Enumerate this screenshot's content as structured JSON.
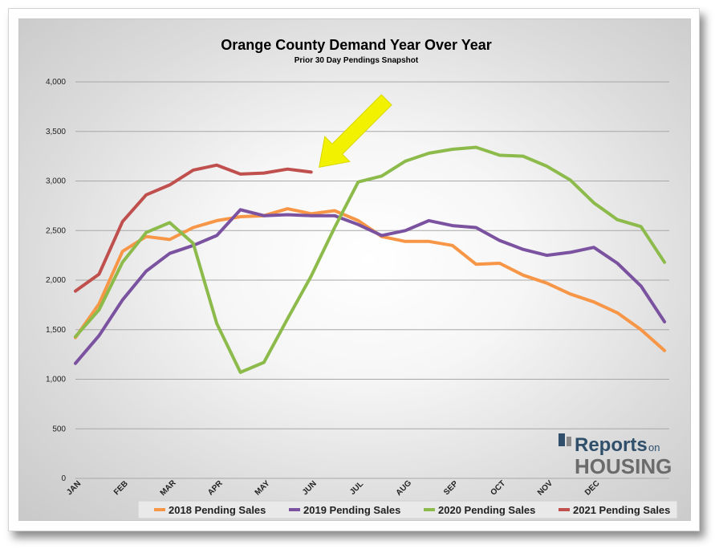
{
  "chart_data": {
    "type": "line",
    "title": "Orange County Demand Year Over Year",
    "subtitle": "Prior 30 Day Pendings Snapshot",
    "xlabel": "",
    "ylabel": "",
    "ylim": [
      0,
      4000
    ],
    "y_ticks": [
      "0",
      "500",
      "1,000",
      "1,500",
      "2,000",
      "2,500",
      "3,000",
      "3,500",
      "4,000"
    ],
    "x_ticks": [
      "JAN",
      "FEB",
      "MAR",
      "APR",
      "MAY",
      "JUN",
      "JUL",
      "AUG",
      "SEP",
      "OCT",
      "NOV",
      "DEC"
    ],
    "grid": true,
    "legend_position": "bottom",
    "annotation": "yellow arrow pointing at the latest 2021 data point",
    "series": [
      {
        "name": "2018 Pending Sales",
        "color": "#f79646",
        "x": [
          0,
          0.5,
          1,
          1.5,
          2,
          2.5,
          3,
          3.5,
          4,
          4.5,
          5,
          5.5,
          6,
          6.5,
          7,
          7.5,
          8,
          8.5,
          9,
          9.5,
          10,
          10.5,
          11,
          11.5
        ],
        "values": [
          1420,
          1760,
          2290,
          2440,
          2410,
          2530,
          2600,
          2640,
          2650,
          2720,
          2670,
          2700,
          2600,
          2440,
          2390,
          2390,
          2350,
          2160,
          2170,
          2050,
          1970,
          1860,
          1780,
          1670
        ]
      },
      {
        "name": "2019 Pending Sales",
        "color": "#7a52a0",
        "x": [
          0,
          0.5,
          1,
          1.5,
          2,
          2.5,
          3,
          3.5,
          4,
          4.5,
          5,
          5.5,
          6,
          6.5,
          7,
          7.5,
          8,
          8.5,
          9,
          9.5,
          10,
          10.5,
          11,
          11.5
        ],
        "values": [
          1160,
          1440,
          1800,
          2090,
          2270,
          2350,
          2450,
          2710,
          2650,
          2660,
          2650,
          2650,
          2560,
          2450,
          2500,
          2600,
          2550,
          2530,
          2400,
          2310,
          2250,
          2280,
          2330,
          2170
        ]
      },
      {
        "name": "2020 Pending Sales",
        "color": "#8dbb4b",
        "x": [
          0,
          0.5,
          1,
          1.5,
          2,
          2.5,
          3,
          3.5,
          4,
          4.5,
          5,
          5.5,
          6,
          6.5,
          7,
          7.5,
          8,
          8.5,
          9,
          9.5,
          10,
          10.5,
          11,
          11.5
        ],
        "values": [
          1430,
          1700,
          2180,
          2480,
          2580,
          2370,
          1560,
          1070,
          1170,
          1610,
          2040,
          2530,
          2990,
          3050,
          3200,
          3280,
          3320,
          3340,
          3260,
          3250,
          3150,
          3010,
          2780,
          2610
        ]
      },
      {
        "name": "2021 Pending Sales",
        "color": "#c0504d",
        "x": [
          0,
          0.5,
          1,
          1.5,
          2,
          2.5,
          3,
          3.5,
          4,
          4.5,
          5
        ],
        "values": [
          1890,
          2060,
          2590,
          2860,
          2960,
          3110,
          3160,
          3070,
          3080,
          3120,
          3090
        ]
      }
    ]
  },
  "extra_points": {
    "note_tail": "final December points",
    "2018": [
      1500,
      1290
    ],
    "2019": [
      1940,
      1580
    ],
    "2020": [
      2540,
      2180
    ]
  },
  "logo": {
    "reports": "Reports",
    "on": "on",
    "housing": "HOUSING",
    "color_primary": "#2f4f6b",
    "color_secondary": "#6b6b6b"
  }
}
